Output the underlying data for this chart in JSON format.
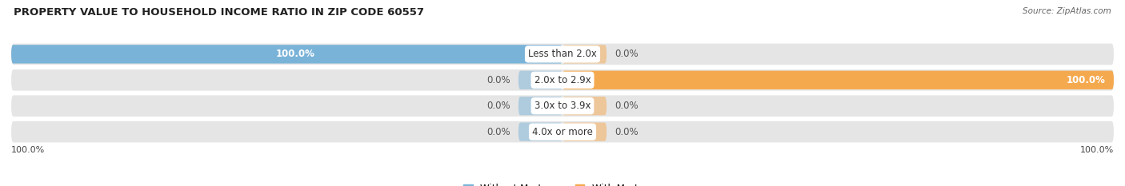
{
  "title": "PROPERTY VALUE TO HOUSEHOLD INCOME RATIO IN ZIP CODE 60557",
  "source": "Source: ZipAtlas.com",
  "categories": [
    "Less than 2.0x",
    "2.0x to 2.9x",
    "3.0x to 3.9x",
    "4.0x or more"
  ],
  "without_mortgage": [
    100.0,
    0.0,
    0.0,
    0.0
  ],
  "with_mortgage": [
    0.0,
    100.0,
    0.0,
    0.0
  ],
  "color_without": "#7ab3d8",
  "color_with": "#f5a94e",
  "bar_bg_color": "#e5e5e5",
  "bar_bg_color2": "#f0f0f0",
  "figsize": [
    14.06,
    2.33
  ],
  "title_fontsize": 9.5,
  "label_fontsize": 8.5,
  "source_fontsize": 7.5,
  "bottom_left_label": "100.0%",
  "bottom_right_label": "100.0%",
  "xlim": [
    -100,
    100
  ],
  "background_color": "#ffffff",
  "row_bg_colors": [
    "#e8eef3",
    "#e8eef3",
    "#e8eef3",
    "#e8eef3"
  ]
}
